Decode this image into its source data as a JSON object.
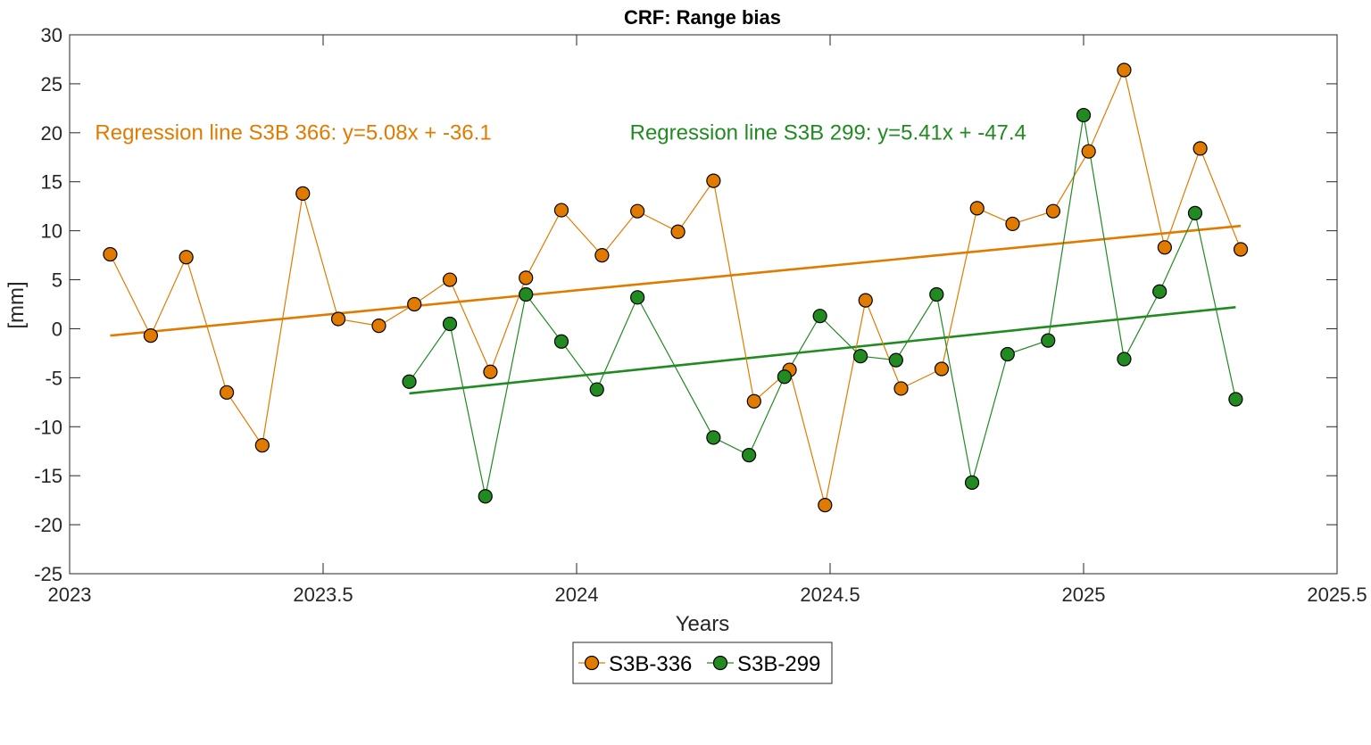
{
  "chart_data": {
    "type": "line",
    "title": "CRF: Range bias",
    "xlabel": "Years",
    "ylabel": "[mm]",
    "xlim": [
      2023,
      2025.5
    ],
    "ylim": [
      -25,
      30
    ],
    "xticks": [
      2023,
      2023.5,
      2024,
      2024.5,
      2025,
      2025.5
    ],
    "xtick_labels": [
      "2023",
      "2023.5",
      "2024",
      "2024.5",
      "2025",
      "2025.5"
    ],
    "yticks": [
      -25,
      -20,
      -15,
      -10,
      -5,
      0,
      5,
      10,
      15,
      20,
      25,
      30
    ],
    "ytick_labels": [
      "-25",
      "-20",
      "-15",
      "-10",
      "-5",
      "0",
      "5",
      "10",
      "15",
      "20",
      "25",
      "30"
    ],
    "grid": false,
    "legend_position": "bottom-center",
    "series": [
      {
        "name": "S3B-336",
        "color": "#E07B00",
        "x": [
          2023.08,
          2023.16,
          2023.23,
          2023.31,
          2023.38,
          2023.46,
          2023.53,
          2023.61,
          2023.68,
          2023.75,
          2023.83,
          2023.9,
          2023.97,
          2024.05,
          2024.12,
          2024.2,
          2024.27,
          2024.35,
          2024.42,
          2024.49,
          2024.57,
          2024.64,
          2024.72,
          2024.79,
          2024.86,
          2024.94,
          2025.01,
          2025.08,
          2025.16,
          2025.23,
          2025.31
        ],
        "y": [
          7.6,
          -0.7,
          7.3,
          -6.5,
          -11.9,
          13.8,
          1.0,
          0.3,
          2.5,
          5.0,
          -4.4,
          5.2,
          12.1,
          7.5,
          12.0,
          9.9,
          15.1,
          -7.4,
          -4.2,
          -18.0,
          2.9,
          -6.1,
          -4.1,
          12.3,
          10.7,
          12.0,
          18.1,
          26.4,
          8.3,
          18.4,
          8.1
        ]
      },
      {
        "name": "S3B-299",
        "color": "#218A21",
        "x": [
          2023.67,
          2023.75,
          2023.82,
          2023.9,
          2023.97,
          2024.04,
          2024.12,
          2024.27,
          2024.34,
          2024.41,
          2024.48,
          2024.56,
          2024.63,
          2024.71,
          2024.78,
          2024.85,
          2024.93,
          2025.0,
          2025.08,
          2025.15,
          2025.22,
          2025.3
        ],
        "y": [
          -5.4,
          0.5,
          -17.1,
          3.5,
          -1.3,
          -6.2,
          3.2,
          -11.1,
          -12.9,
          -4.9,
          1.3,
          -2.8,
          -3.2,
          3.5,
          -15.7,
          -2.6,
          -1.2,
          21.8,
          -3.1,
          3.8,
          11.8,
          -7.2
        ]
      }
    ],
    "regression_lines": [
      {
        "name": "Regression S3B-336",
        "color": "#E07B00",
        "x": [
          2023.08,
          2025.31
        ],
        "y": [
          -0.7,
          10.5
        ]
      },
      {
        "name": "Regression S3B-299",
        "color": "#218A21",
        "x": [
          2023.67,
          2025.3
        ],
        "y": [
          -6.6,
          2.2
        ]
      }
    ],
    "annotations": [
      {
        "text": "Regression line S3B 366: y=5.08x + -36.1",
        "color": "#E07B00",
        "x": 2023.05,
        "y": 19.3
      },
      {
        "text": "Regression line S3B 299: y=5.41x + -47.4",
        "color": "#218A21",
        "x": 2024.105,
        "y": 19.3
      }
    ]
  }
}
